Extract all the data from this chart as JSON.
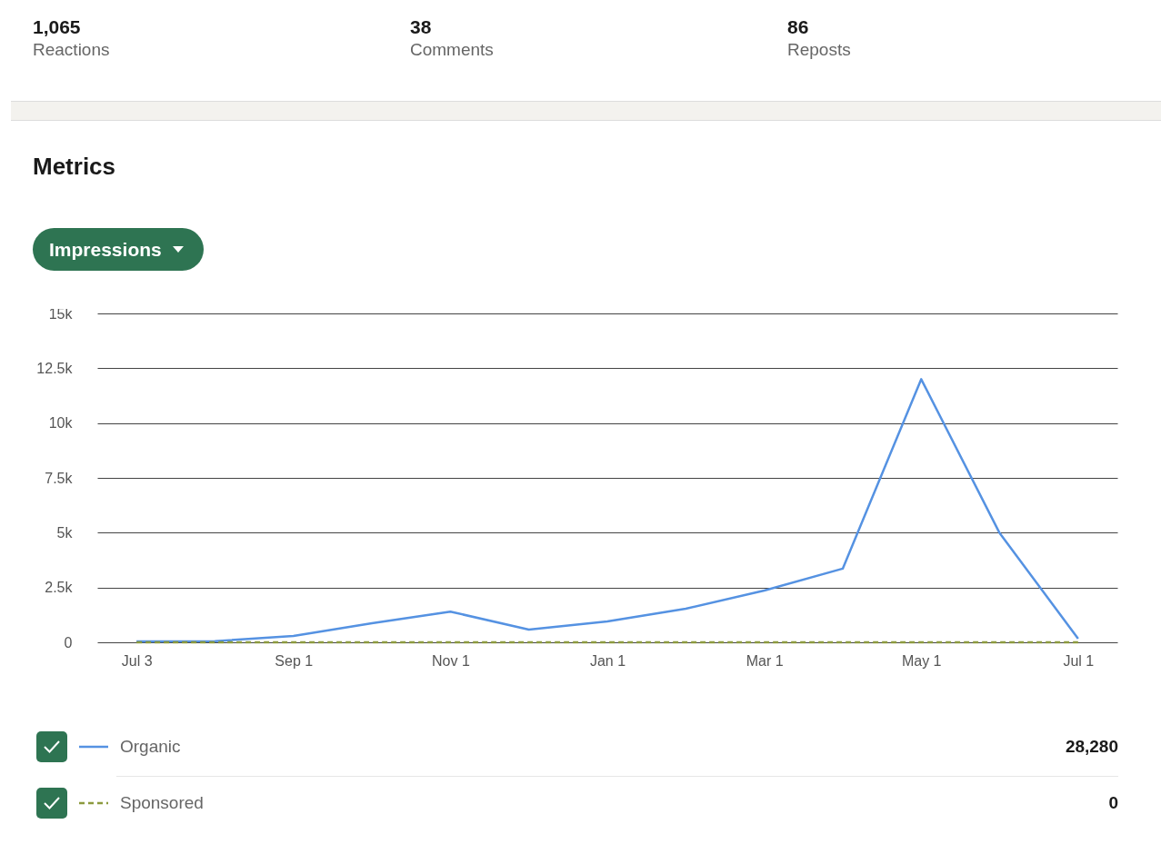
{
  "chart_data": {
    "type": "line",
    "title": "Metrics",
    "ylabel": "Impressions",
    "categories": [
      "Jul 3",
      null,
      "Sep 1",
      null,
      "Nov 1",
      null,
      "Jan 1",
      null,
      "Mar 1",
      null,
      "May 1",
      null,
      "Jul 1"
    ],
    "series": [
      {
        "name": "Organic",
        "color": "#5592e2",
        "line_style": "solid",
        "values": [
          40,
          50,
          290,
          870,
          1400,
          580,
          950,
          1530,
          2360,
          3360,
          12000,
          4980,
          170
        ]
      },
      {
        "name": "Sponsored",
        "color": "#8c9a3e",
        "line_style": "dashed",
        "values": [
          0,
          0,
          0,
          0,
          0,
          0,
          0,
          0,
          0,
          0,
          0,
          0,
          0
        ]
      }
    ],
    "ylim": [
      0,
      15000
    ],
    "yticks": [
      {
        "value": 0,
        "label": "0"
      },
      {
        "value": 2500,
        "label": "2.5k"
      },
      {
        "value": 5000,
        "label": "5k"
      },
      {
        "value": 7500,
        "label": "7.5k"
      },
      {
        "value": 10000,
        "label": "10k"
      },
      {
        "value": 12500,
        "label": "12.5k"
      },
      {
        "value": 15000,
        "label": "15k"
      }
    ],
    "grid": "y",
    "legend": "bottom",
    "annotations": [
      "1,065",
      "Reactions",
      "38",
      "Comments",
      "86",
      "Reposts",
      "28,280",
      "0"
    ]
  }
}
